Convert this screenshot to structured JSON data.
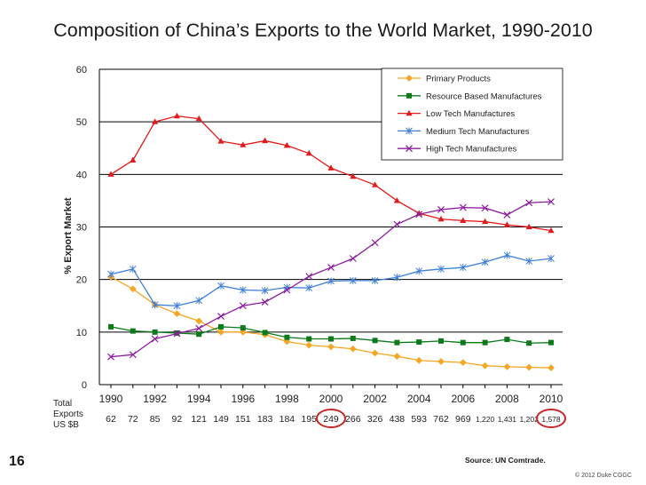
{
  "slide": {
    "number": "16",
    "source": "Source:  UN Comtrade.",
    "copyright": "© 2012 Duke CGGC"
  },
  "colors": {
    "primary": "#F5A623",
    "resource": "#0B7A1B",
    "lowtech": "#E21A1A",
    "medtech": "#3F7FD9",
    "hightech": "#8B1C9E",
    "highlight_circle": "#C62828"
  },
  "chart_data": {
    "type": "line",
    "title": "Composition of China’s Exports to the World Market, 1990-2010",
    "ylabel": "% Export Market",
    "xlabel": "",
    "ylim": [
      0,
      60
    ],
    "yticks": [
      "0",
      "10",
      "20",
      "30",
      "40",
      "50",
      "60"
    ],
    "grid": true,
    "legend_position": "top-right",
    "x": [
      1990,
      1991,
      1992,
      1993,
      1994,
      1995,
      1996,
      1997,
      1998,
      1999,
      2000,
      2001,
      2002,
      2003,
      2004,
      2005,
      2006,
      2007,
      2008,
      2009,
      2010
    ],
    "xtick_labels": [
      "1990",
      "1992",
      "1994",
      "1996",
      "1998",
      "2000",
      "2002",
      "2004",
      "2006",
      "2008",
      "2010"
    ],
    "total_exports_label": [
      "Total",
      "Exports",
      "US $B"
    ],
    "total_exports": [
      "62",
      "72",
      "85",
      "92",
      "121",
      "149",
      "151",
      "183",
      "184",
      "195",
      "249",
      "266",
      "326",
      "438",
      "593",
      "762",
      "969",
      "1,220",
      "1,431",
      "1,202",
      "1,578"
    ],
    "highlighted_totals": [
      "249",
      "1,578"
    ],
    "series": [
      {
        "name": "Primary Products",
        "marker": "diamond",
        "color_key": "primary",
        "values": [
          20.5,
          18.2,
          15.2,
          13.5,
          12.1,
          10.0,
          10.0,
          9.5,
          8.2,
          7.5,
          7.2,
          6.8,
          6.0,
          5.4,
          4.6,
          4.4,
          4.2,
          3.6,
          3.4,
          3.3,
          3.2
        ]
      },
      {
        "name": "Resource Based Manufactures",
        "marker": "square",
        "color_key": "resource",
        "values": [
          11.0,
          10.2,
          10.0,
          9.8,
          9.6,
          11.0,
          10.8,
          9.9,
          9.0,
          8.7,
          8.7,
          8.8,
          8.4,
          8.0,
          8.1,
          8.3,
          8.0,
          8.0,
          8.6,
          7.9,
          8.0
        ]
      },
      {
        "name": "Low Tech Manufactures",
        "marker": "triangle",
        "color_key": "lowtech",
        "values": [
          40.0,
          42.7,
          50.0,
          51.1,
          50.6,
          46.3,
          45.6,
          46.4,
          45.5,
          44.0,
          41.2,
          39.6,
          38.0,
          35.0,
          32.6,
          31.5,
          31.2,
          31.0,
          30.4,
          30.0,
          29.3
        ]
      },
      {
        "name": "Medium Tech Manufactures",
        "marker": "star",
        "color_key": "medtech",
        "values": [
          21.0,
          22.0,
          15.2,
          15.0,
          16.0,
          18.8,
          18.0,
          17.9,
          18.5,
          18.4,
          19.7,
          19.8,
          19.8,
          20.4,
          21.6,
          22.0,
          22.3,
          23.3,
          24.6,
          23.5,
          24.0
        ]
      },
      {
        "name": "High Tech Manufactures",
        "marker": "x",
        "color_key": "hightech",
        "values": [
          5.3,
          5.7,
          8.7,
          9.7,
          10.7,
          13.0,
          15.0,
          15.7,
          18.0,
          20.6,
          22.3,
          24.0,
          27.0,
          30.5,
          32.4,
          33.3,
          33.7,
          33.6,
          32.3,
          34.6,
          34.8
        ]
      }
    ]
  }
}
